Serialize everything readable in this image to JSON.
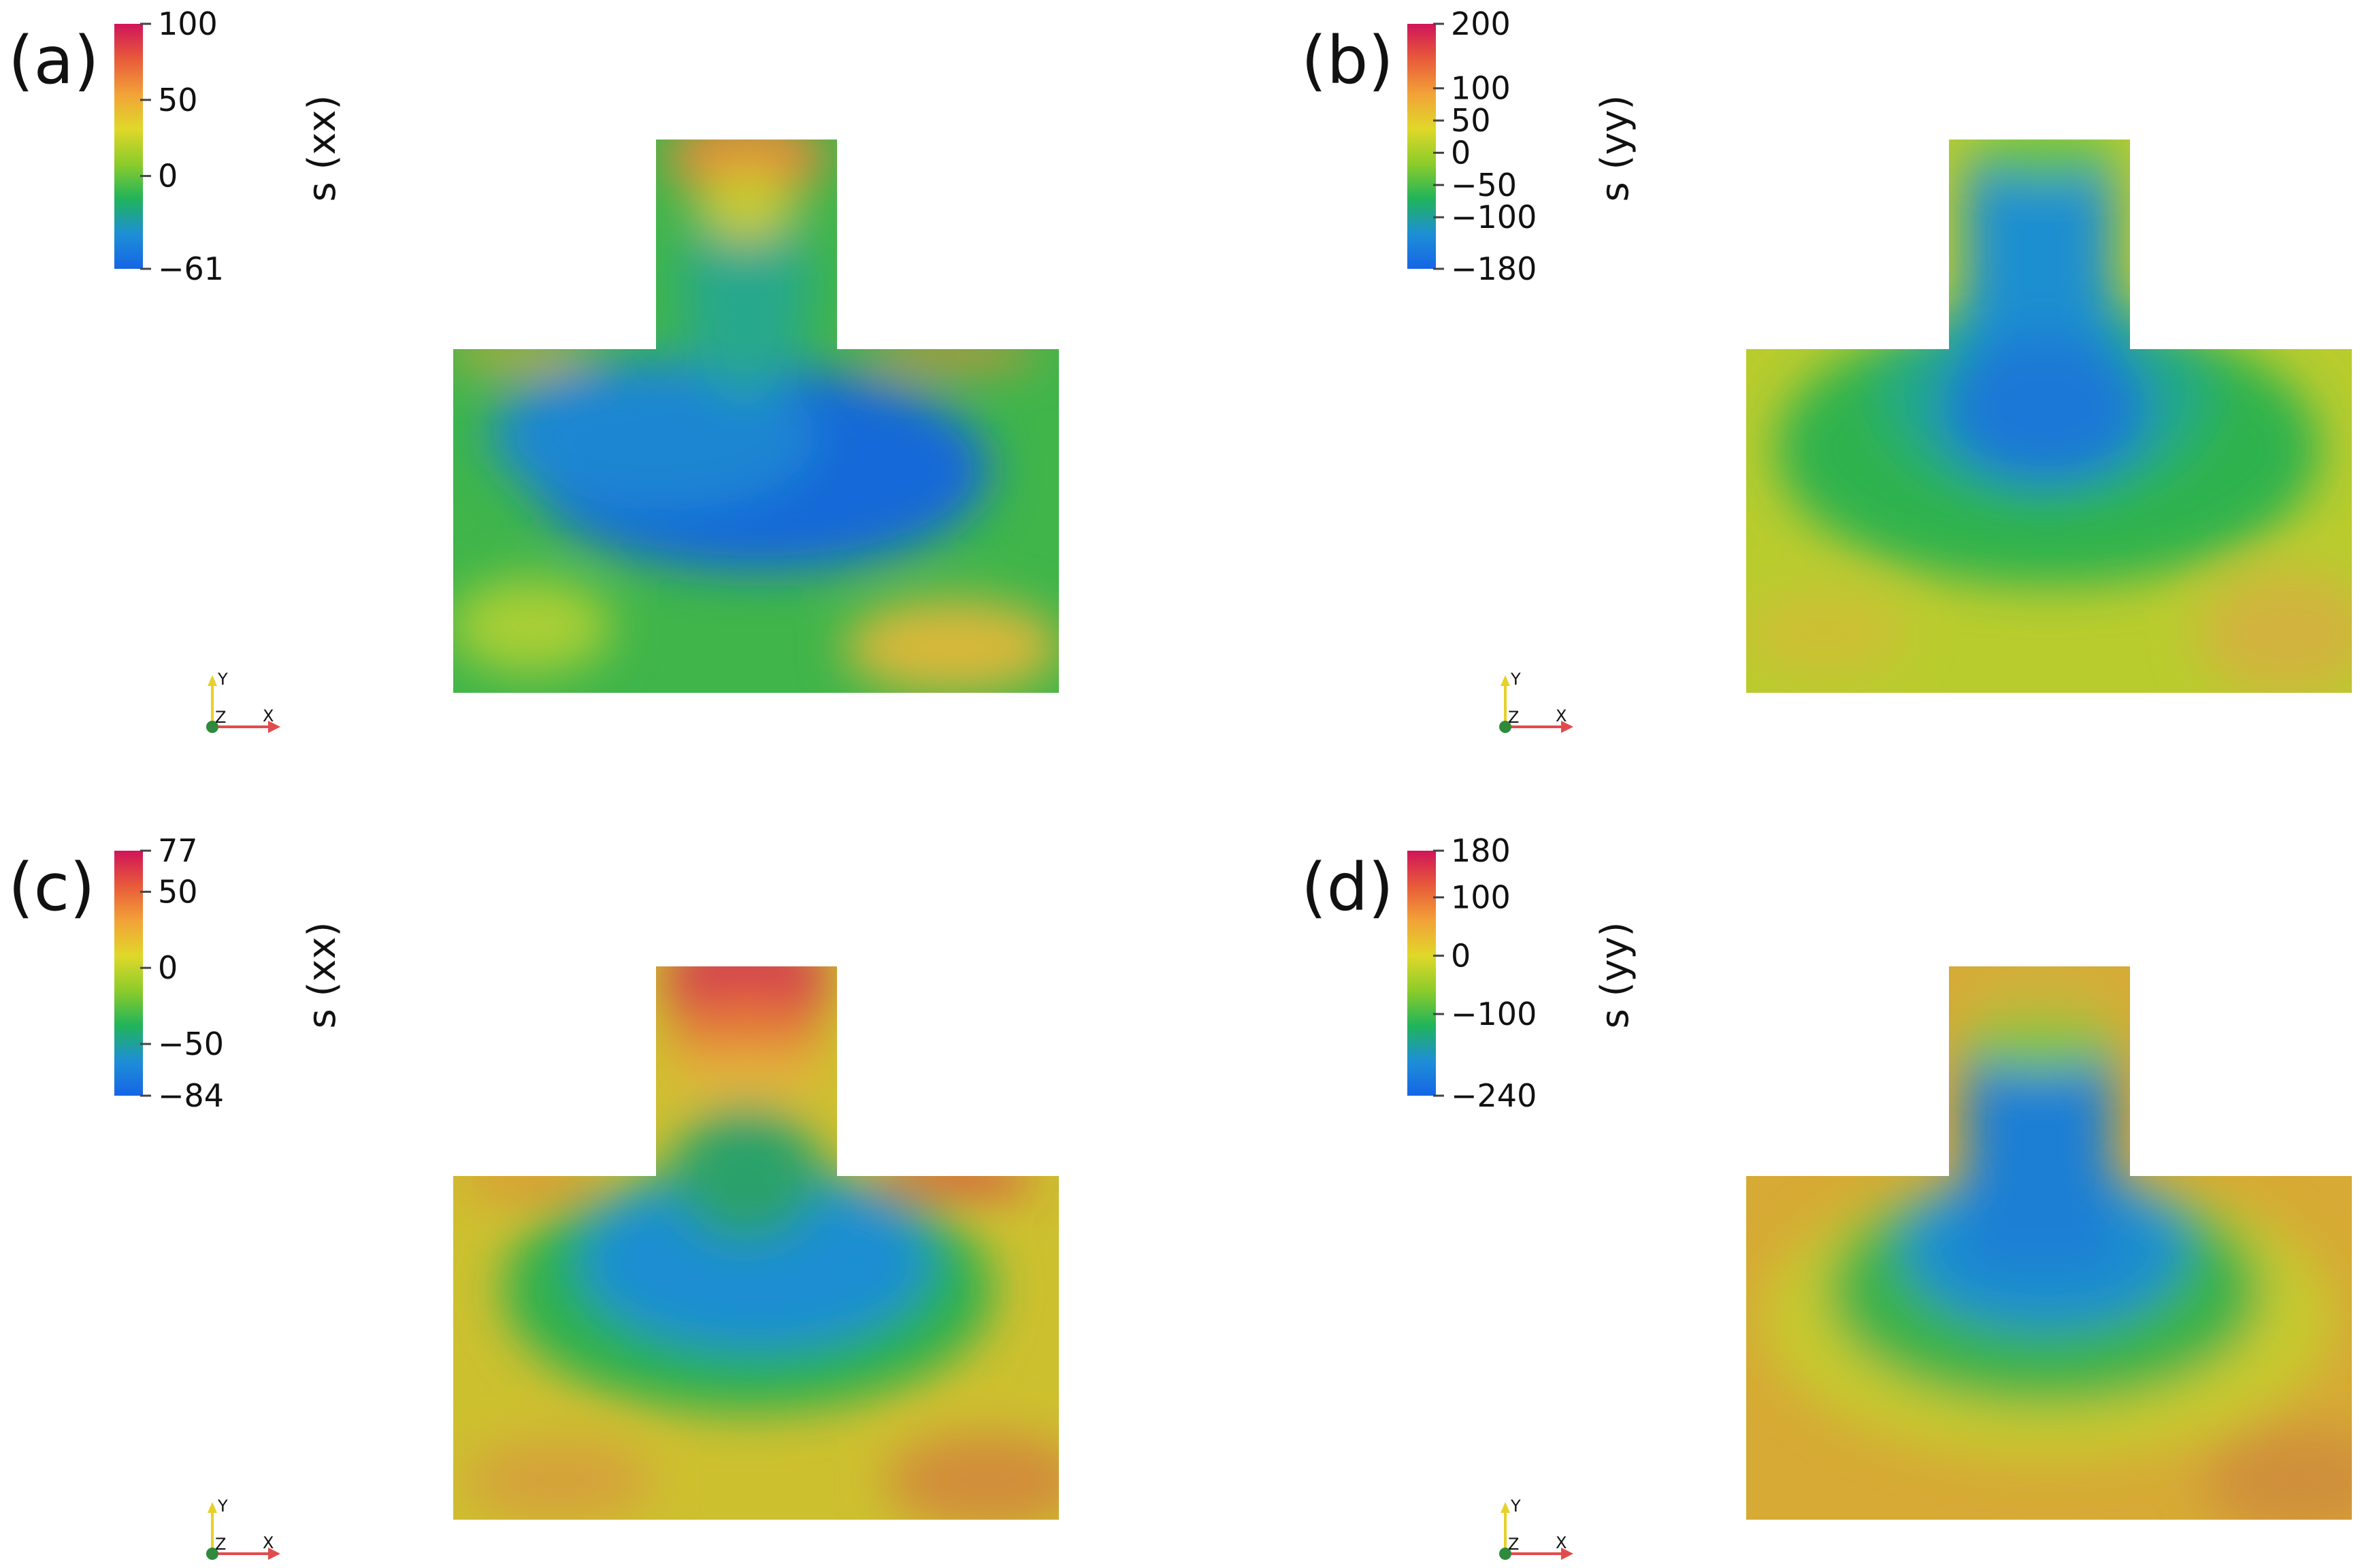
{
  "panels": [
    {
      "id": "a",
      "panel_label": "(a)",
      "quantity_label": "s (xx)",
      "colorbar_ticks": [
        {
          "label": "100",
          "value": 100
        },
        {
          "label": "50",
          "value": 50
        },
        {
          "label": "0",
          "value": 0
        },
        {
          "label": "−61",
          "value": -61
        }
      ],
      "range": [
        -61,
        100
      ],
      "field": "a"
    },
    {
      "id": "b",
      "panel_label": "(b)",
      "quantity_label": "s (yy)",
      "colorbar_ticks": [
        {
          "label": "200",
          "value": 200
        },
        {
          "label": "100",
          "value": 100
        },
        {
          "label": "50",
          "value": 50
        },
        {
          "label": "0",
          "value": 0
        },
        {
          "label": "−50",
          "value": -50
        },
        {
          "label": "−100",
          "value": -100
        },
        {
          "label": "−180",
          "value": -180
        }
      ],
      "range": [
        -180,
        200
      ],
      "field": "b"
    },
    {
      "id": "c",
      "panel_label": "(c)",
      "quantity_label": "s (xx)",
      "colorbar_ticks": [
        {
          "label": "77",
          "value": 77
        },
        {
          "label": "50",
          "value": 50
        },
        {
          "label": "0",
          "value": 0
        },
        {
          "label": "−50",
          "value": -50
        },
        {
          "label": "−84",
          "value": -84
        }
      ],
      "range": [
        -84,
        77
      ],
      "field": "c"
    },
    {
      "id": "d",
      "panel_label": "(d)",
      "quantity_label": "s (yy)",
      "colorbar_ticks": [
        {
          "label": "180",
          "value": 180
        },
        {
          "label": "100",
          "value": 100
        },
        {
          "label": "0",
          "value": 0
        },
        {
          "label": "−100",
          "value": -100
        },
        {
          "label": "−240",
          "value": -240
        }
      ],
      "range": [
        -240,
        180
      ],
      "field": "d"
    }
  ],
  "axes_triad": {
    "x": "X",
    "y": "Y",
    "z": "Z"
  },
  "colors": {
    "colormap": [
      "#1565e6",
      "#1e8fd6",
      "#20b45a",
      "#8ccc2a",
      "#e0d829",
      "#f2a238",
      "#e85a3a",
      "#d0145a"
    ]
  }
}
